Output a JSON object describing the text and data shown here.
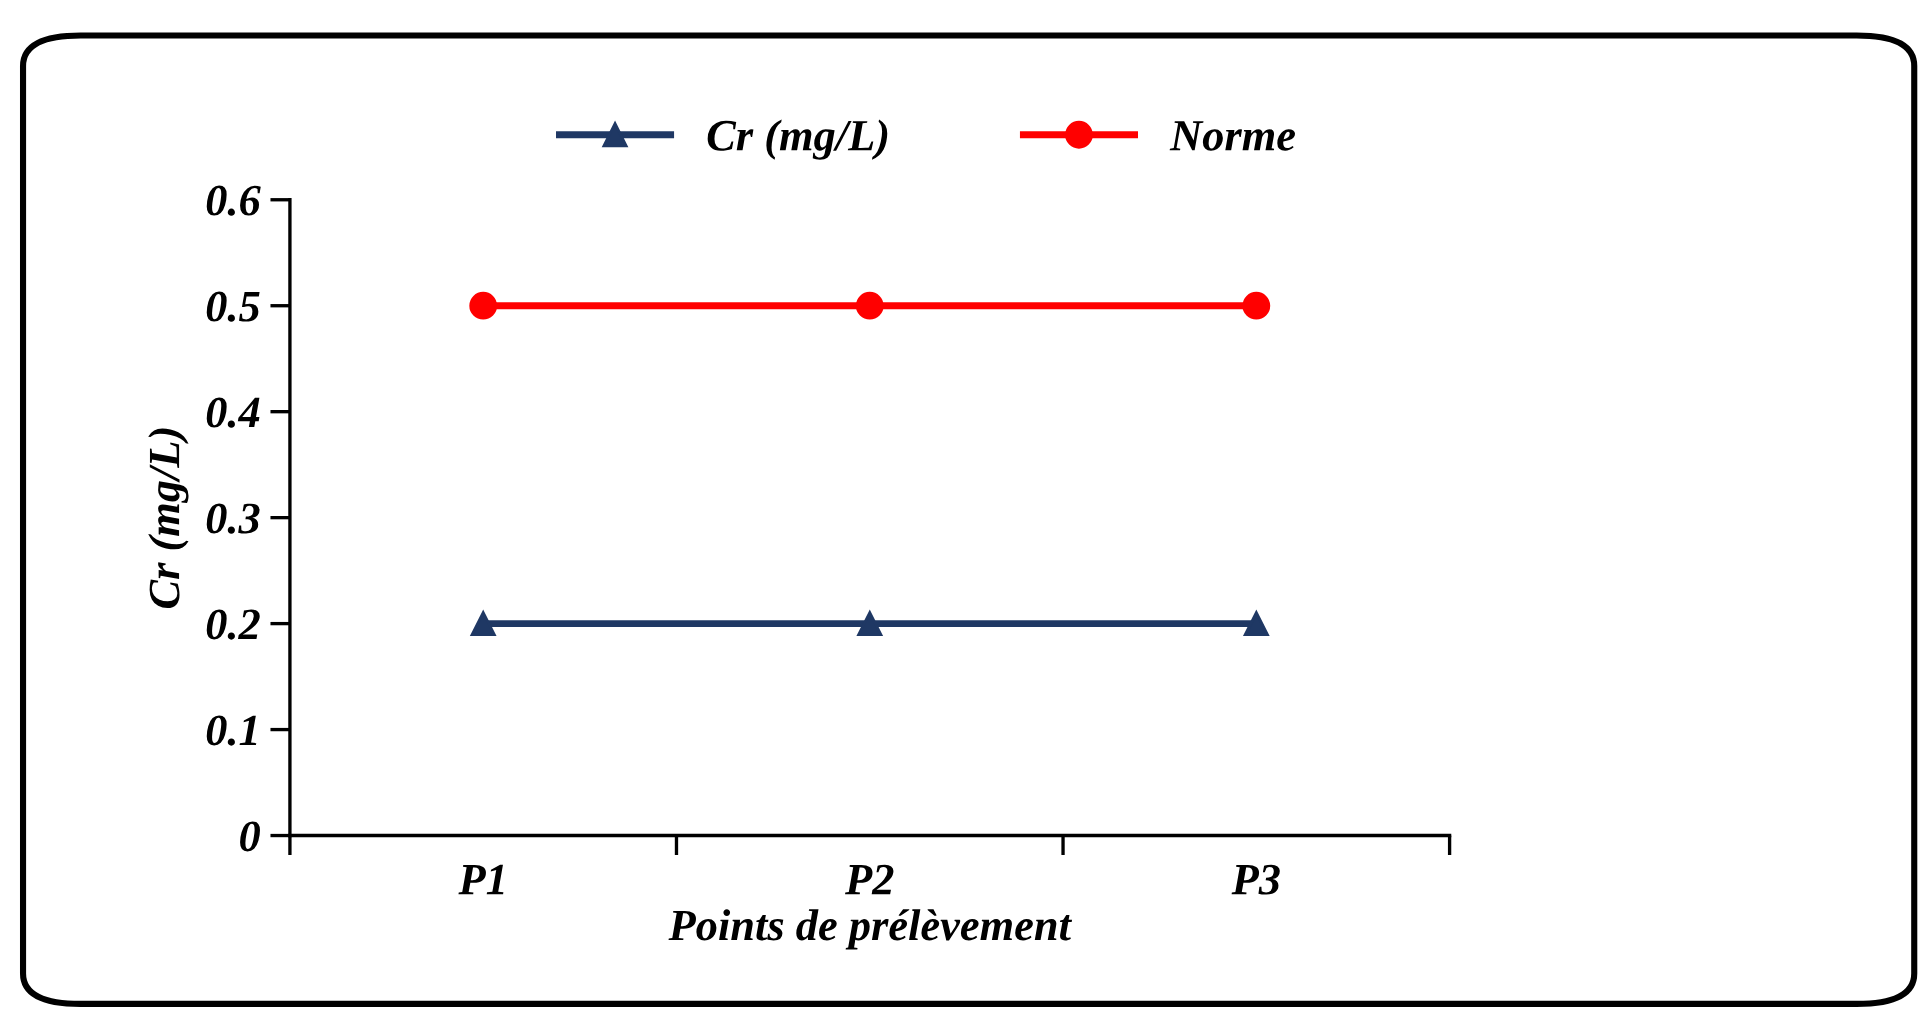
{
  "chart_data": {
    "type": "line",
    "xlabel": "Points de prélèvement",
    "ylabel": "Cr (mg/L)",
    "categories": [
      "P1",
      "P2",
      "P3"
    ],
    "series": [
      {
        "name": "Cr (mg/L)",
        "color": "#1f3864",
        "values": [
          0.2,
          0.2,
          0.2
        ],
        "marker": "triangle"
      },
      {
        "name": "Norme",
        "color": "#ff0000",
        "values": [
          0.5,
          0.5,
          0.5
        ],
        "marker": "circle"
      }
    ],
    "ylim": [
      0,
      0.6
    ],
    "yticks": [
      {
        "value": 0,
        "label": "0"
      },
      0.1,
      0.2,
      0.3,
      0.4,
      0.5,
      0.6
    ],
    "grid": false,
    "legend": "top",
    "line_style": "solid"
  }
}
